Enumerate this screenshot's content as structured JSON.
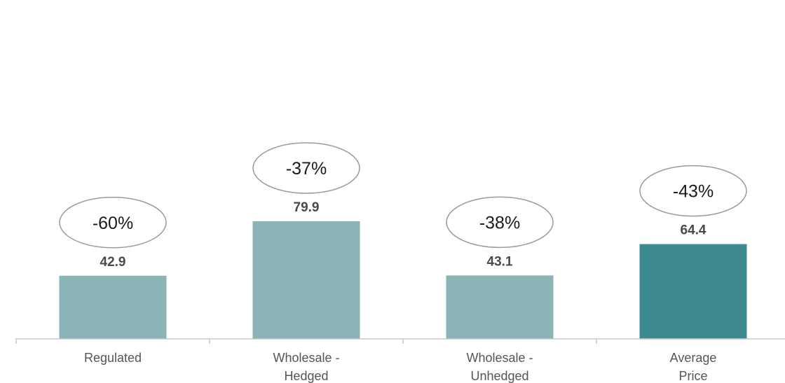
{
  "chart_data": {
    "type": "bar",
    "categories": [
      [
        "Regulated"
      ],
      [
        "Wholesale -",
        "Hedged"
      ],
      [
        "Wholesale -",
        "Unhedged"
      ],
      [
        "Average",
        "Price"
      ]
    ],
    "values": [
      42.9,
      79.9,
      43.1,
      64.4
    ],
    "value_labels": [
      "42.9",
      "79.9",
      "43.1",
      "64.4"
    ],
    "change_labels": [
      "-60%",
      "-37%",
      "-38%",
      "-43%"
    ],
    "highlighted_index": 3,
    "ylim": [
      0,
      100
    ],
    "grid": false,
    "legend": "none",
    "colors": {
      "bar": "#8ab4b5",
      "bar_highlight": "#3d8a91",
      "axis": "#c8c8c8"
    }
  }
}
